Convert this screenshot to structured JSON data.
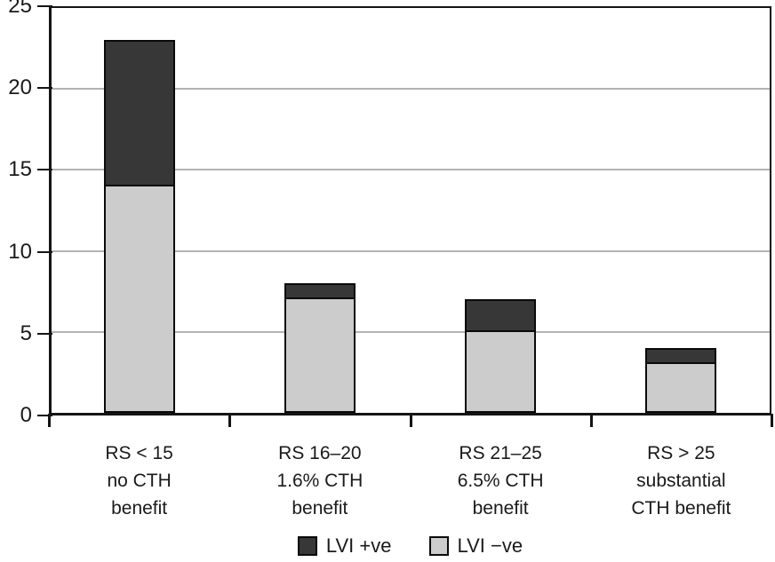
{
  "chart_data": {
    "type": "bar",
    "stacked": true,
    "categories": [
      [
        "RS < 15",
        "no CTH",
        "benefit"
      ],
      [
        "RS 16–20",
        "1.6% CTH",
        "benefit"
      ],
      [
        "RS 21–25",
        "6.5% CTH",
        "benefit"
      ],
      [
        "RS > 25",
        "substantial",
        "CTH benefit"
      ]
    ],
    "series": [
      {
        "name": "LVI +ve",
        "color": "#373737",
        "position": "top",
        "values": [
          9,
          1,
          2,
          1
        ]
      },
      {
        "name": "LVI −ve",
        "color": "#cccccc",
        "position": "bottom",
        "values": [
          14,
          7,
          5,
          3
        ]
      }
    ],
    "totals": [
      23,
      8,
      7,
      4
    ],
    "title": "",
    "xlabel": "",
    "ylabel": "",
    "ylim": [
      0,
      25
    ],
    "yticks": [
      0,
      5,
      10,
      15,
      20,
      25
    ],
    "grid": true,
    "gridline_values": [
      5,
      10,
      15,
      20
    ],
    "legend_position": "bottom"
  },
  "colors": {
    "series_dark": "#373737",
    "series_light": "#cccccc",
    "bar_border": "#0a0a0a",
    "axis": "#141414",
    "gridline": "#b3b3b3",
    "background": "#ffffff",
    "text": "#1a1a1a"
  }
}
